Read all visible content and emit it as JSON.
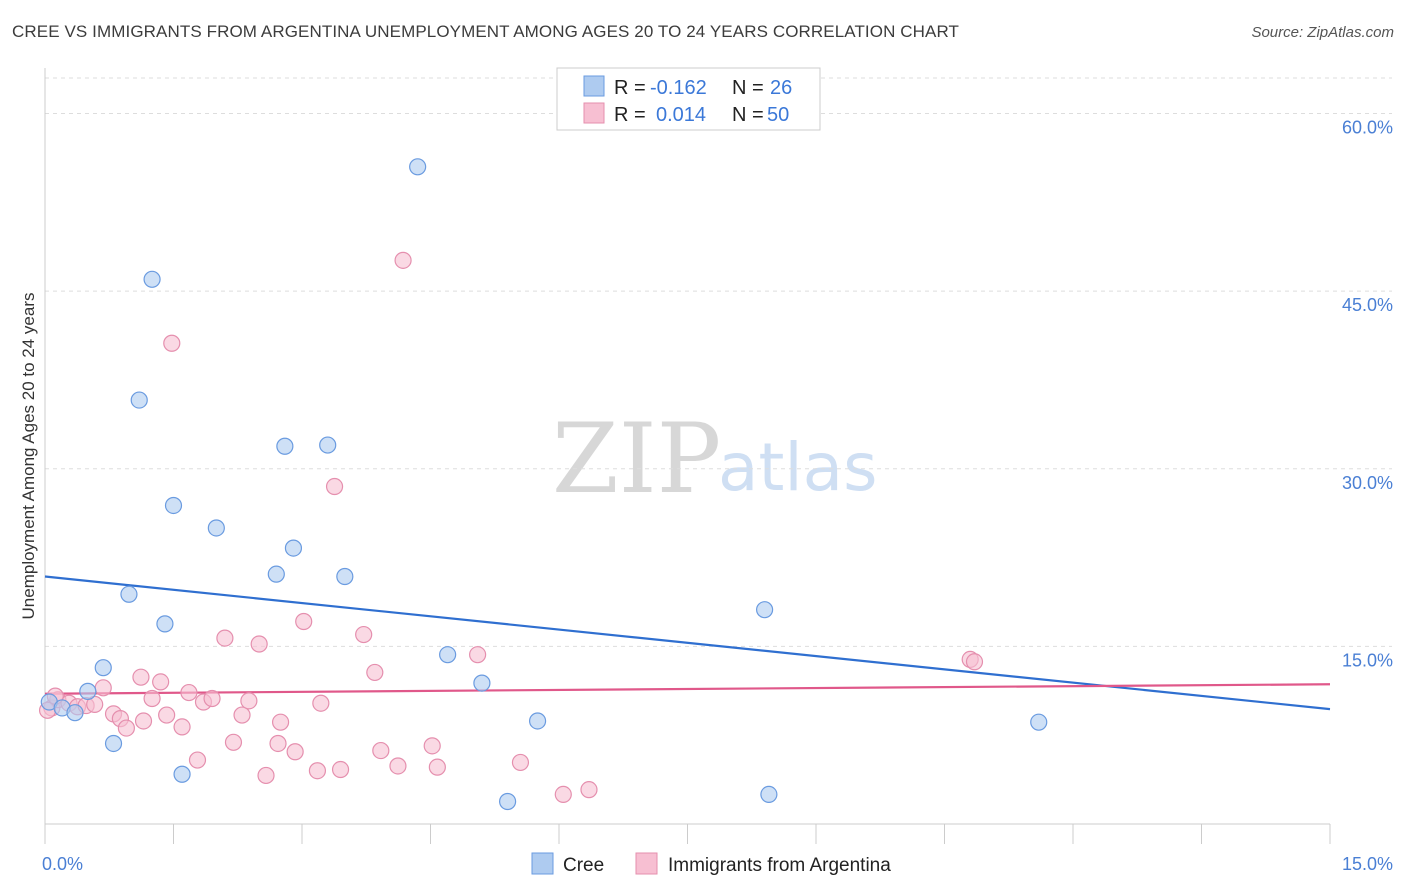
{
  "title": "CREE VS IMMIGRANTS FROM ARGENTINA UNEMPLOYMENT AMONG AGES 20 TO 24 YEARS CORRELATION CHART",
  "source": "Source: ZipAtlas.com",
  "watermark": {
    "zip": "ZIP",
    "atlas": "atlas"
  },
  "colors": {
    "cree_fill": "#aecbf0",
    "cree_stroke": "#6a9be0",
    "cree_line": "#2f6fd0",
    "arg_fill": "#f7bfd2",
    "arg_stroke": "#e58fae",
    "arg_line": "#e0588a",
    "tick_color": "#4a7fd4",
    "grid": "#dddddd"
  },
  "legend": {
    "r_label": "R =",
    "n_label": "N =",
    "rows": [
      {
        "series": "cree",
        "r": "-0.162",
        "n": "26"
      },
      {
        "series": "argentina",
        "r": "0.014",
        "n": "50"
      }
    ]
  },
  "chart_data": {
    "type": "scatter",
    "title": "CREE VS IMMIGRANTS FROM ARGENTINA UNEMPLOYMENT AMONG AGES 20 TO 24 YEARS CORRELATION CHART",
    "xlabel": "",
    "ylabel": "Unemployment Among Ages 20 to 24 years",
    "xlim": [
      0,
      15
    ],
    "ylim": [
      0,
      63
    ],
    "x_tick_labels": [
      "0.0%",
      "15.0%"
    ],
    "y_ticks": [
      15,
      30,
      45,
      60
    ],
    "y_tick_labels": [
      "15.0%",
      "30.0%",
      "45.0%",
      "60.0%"
    ],
    "grid": true,
    "legend_position": "top-center",
    "series": [
      {
        "name": "Cree",
        "r": -0.162,
        "n": 26,
        "trend": {
          "x": [
            0,
            15
          ],
          "y": [
            20.9,
            9.7
          ]
        },
        "points": [
          {
            "x": 0.05,
            "y": 10.3
          },
          {
            "x": 0.2,
            "y": 9.8
          },
          {
            "x": 0.35,
            "y": 9.4
          },
          {
            "x": 0.5,
            "y": 11.2
          },
          {
            "x": 0.68,
            "y": 13.2
          },
          {
            "x": 0.8,
            "y": 6.8
          },
          {
            "x": 0.98,
            "y": 19.4
          },
          {
            "x": 1.1,
            "y": 35.8
          },
          {
            "x": 1.25,
            "y": 46.0
          },
          {
            "x": 1.4,
            "y": 16.9
          },
          {
            "x": 1.5,
            "y": 26.9
          },
          {
            "x": 1.6,
            "y": 4.2
          },
          {
            "x": 2.0,
            "y": 25.0
          },
          {
            "x": 2.7,
            "y": 21.1
          },
          {
            "x": 2.8,
            "y": 31.9
          },
          {
            "x": 2.9,
            "y": 23.3
          },
          {
            "x": 3.3,
            "y": 32.0
          },
          {
            "x": 3.5,
            "y": 20.9
          },
          {
            "x": 4.35,
            "y": 55.5
          },
          {
            "x": 4.7,
            "y": 14.3
          },
          {
            "x": 5.1,
            "y": 11.9
          },
          {
            "x": 5.4,
            "y": 1.9
          },
          {
            "x": 5.75,
            "y": 8.7
          },
          {
            "x": 8.4,
            "y": 18.1
          },
          {
            "x": 8.45,
            "y": 2.5
          },
          {
            "x": 11.6,
            "y": 8.6
          }
        ]
      },
      {
        "name": "Immigrants from Argentina",
        "r": 0.014,
        "n": 50,
        "trend": {
          "x": [
            0,
            15
          ],
          "y": [
            11.0,
            11.8
          ]
        },
        "points": [
          {
            "x": 0.08,
            "y": 9.8
          },
          {
            "x": 0.15,
            "y": 10.5
          },
          {
            "x": 0.28,
            "y": 10.2
          },
          {
            "x": 0.38,
            "y": 9.9
          },
          {
            "x": 0.48,
            "y": 10.0
          },
          {
            "x": 0.58,
            "y": 10.1
          },
          {
            "x": 0.68,
            "y": 11.5
          },
          {
            "x": 0.8,
            "y": 9.3
          },
          {
            "x": 0.88,
            "y": 8.9
          },
          {
            "x": 0.95,
            "y": 8.1
          },
          {
            "x": 1.12,
            "y": 12.4
          },
          {
            "x": 1.15,
            "y": 8.7
          },
          {
            "x": 1.25,
            "y": 10.6
          },
          {
            "x": 1.35,
            "y": 12.0
          },
          {
            "x": 1.42,
            "y": 9.2
          },
          {
            "x": 1.48,
            "y": 40.6
          },
          {
            "x": 1.6,
            "y": 8.2
          },
          {
            "x": 1.68,
            "y": 11.1
          },
          {
            "x": 1.78,
            "y": 5.4
          },
          {
            "x": 1.85,
            "y": 10.3
          },
          {
            "x": 1.95,
            "y": 10.6
          },
          {
            "x": 2.1,
            "y": 15.7
          },
          {
            "x": 2.2,
            "y": 6.9
          },
          {
            "x": 2.3,
            "y": 9.2
          },
          {
            "x": 2.38,
            "y": 10.4
          },
          {
            "x": 2.5,
            "y": 15.2
          },
          {
            "x": 2.58,
            "y": 4.1
          },
          {
            "x": 2.72,
            "y": 6.8
          },
          {
            "x": 2.75,
            "y": 8.6
          },
          {
            "x": 2.92,
            "y": 6.1
          },
          {
            "x": 3.02,
            "y": 17.1
          },
          {
            "x": 3.18,
            "y": 4.5
          },
          {
            "x": 3.22,
            "y": 10.2
          },
          {
            "x": 3.38,
            "y": 28.5
          },
          {
            "x": 3.45,
            "y": 4.6
          },
          {
            "x": 3.72,
            "y": 16.0
          },
          {
            "x": 3.85,
            "y": 12.8
          },
          {
            "x": 3.92,
            "y": 6.2
          },
          {
            "x": 4.12,
            "y": 4.9
          },
          {
            "x": 4.18,
            "y": 47.6
          },
          {
            "x": 4.52,
            "y": 6.6
          },
          {
            "x": 4.58,
            "y": 4.8
          },
          {
            "x": 5.05,
            "y": 14.3
          },
          {
            "x": 5.55,
            "y": 5.2
          },
          {
            "x": 6.05,
            "y": 2.5
          },
          {
            "x": 6.35,
            "y": 2.9
          },
          {
            "x": 10.8,
            "y": 13.9
          },
          {
            "x": 10.85,
            "y": 13.7
          },
          {
            "x": 0.03,
            "y": 9.6
          },
          {
            "x": 0.12,
            "y": 10.8
          }
        ]
      }
    ]
  }
}
